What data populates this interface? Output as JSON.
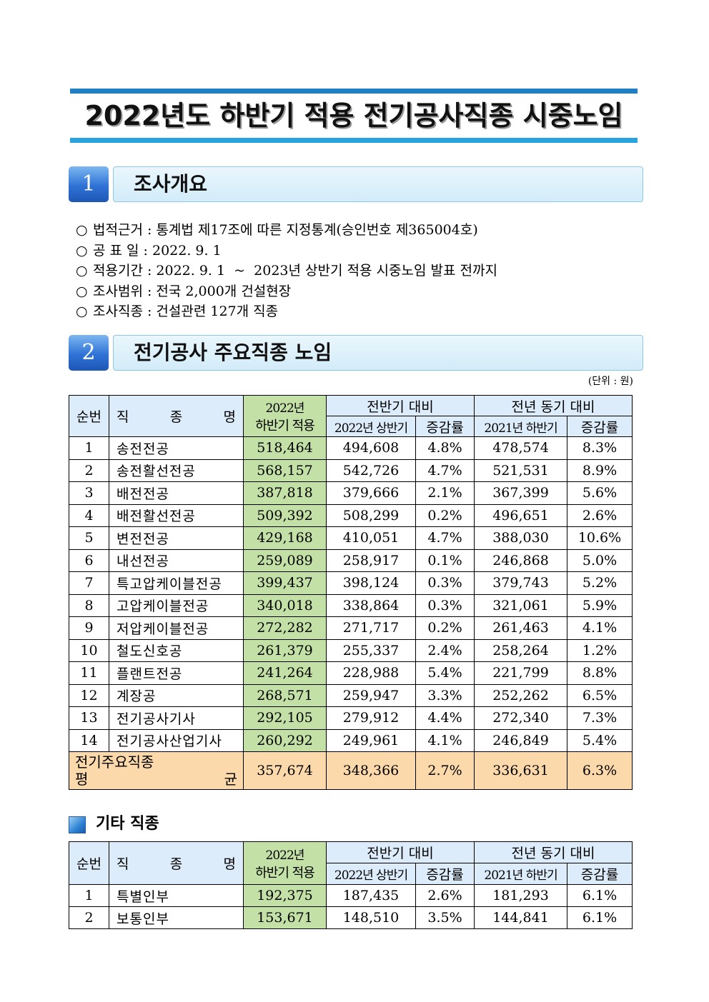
{
  "title": "2022년도 하반기 적용 전기공사직종 시중노임",
  "section1": {
    "number": "1",
    "title": "조사개요"
  },
  "overview": [
    {
      "bullet": "○",
      "text": "법적근거 : 통계법 제17조에 따른 지정통계(승인번호 제365004호)"
    },
    {
      "bullet": "○",
      "text": "공 표 일 : 2022. 9. 1"
    },
    {
      "bullet": "○",
      "text": "적용기간 : 2022. 9. 1  ~  2023년 상반기 적용 시중노임 발표 전까지"
    },
    {
      "bullet": "○",
      "text": "조사범위 : 전국 2,000개 건설현장"
    },
    {
      "bullet": "○",
      "text": "조사직종 : 건설관련 127개 직종"
    }
  ],
  "section2": {
    "number": "2",
    "title": "전기공사 주요직종 노임"
  },
  "unit": "(단위 : 원)",
  "table_headers": {
    "no": "순번",
    "name": [
      "직",
      "종",
      "명"
    ],
    "current_line1": "2022년",
    "current_line2": "하반기 적용",
    "prev_half": "전반기 대비",
    "prev_year": "전년 동기 대비",
    "h1_2022": "2022년 상반기",
    "rate1": "증감률",
    "h2_2021": "2021년 하반기",
    "rate2": "증감률"
  },
  "rows": [
    {
      "no": "1",
      "name": "송전전공",
      "cur": "518,464",
      "h1": "494,608",
      "r1": "4.8%",
      "h2": "478,574",
      "r2": "8.3%"
    },
    {
      "no": "2",
      "name": "송전활선전공",
      "cur": "568,157",
      "h1": "542,726",
      "r1": "4.7%",
      "h2": "521,531",
      "r2": "8.9%"
    },
    {
      "no": "3",
      "name": "배전전공",
      "cur": "387,818",
      "h1": "379,666",
      "r1": "2.1%",
      "h2": "367,399",
      "r2": "5.6%"
    },
    {
      "no": "4",
      "name": "배전활선전공",
      "cur": "509,392",
      "h1": "508,299",
      "r1": "0.2%",
      "h2": "496,651",
      "r2": "2.6%"
    },
    {
      "no": "5",
      "name": "변전전공",
      "cur": "429,168",
      "h1": "410,051",
      "r1": "4.7%",
      "h2": "388,030",
      "r2": "10.6%"
    },
    {
      "no": "6",
      "name": "내선전공",
      "cur": "259,089",
      "h1": "258,917",
      "r1": "0.1%",
      "h2": "246,868",
      "r2": "5.0%"
    },
    {
      "no": "7",
      "name": "특고압케이블전공",
      "cur": "399,437",
      "h1": "398,124",
      "r1": "0.3%",
      "h2": "379,743",
      "r2": "5.2%"
    },
    {
      "no": "8",
      "name": "고압케이블전공",
      "cur": "340,018",
      "h1": "338,864",
      "r1": "0.3%",
      "h2": "321,061",
      "r2": "5.9%"
    },
    {
      "no": "9",
      "name": "저압케이블전공",
      "cur": "272,282",
      "h1": "271,717",
      "r1": "0.2%",
      "h2": "261,463",
      "r2": "4.1%"
    },
    {
      "no": "10",
      "name": "철도신호공",
      "cur": "261,379",
      "h1": "255,337",
      "r1": "2.4%",
      "h2": "258,264",
      "r2": "1.2%"
    },
    {
      "no": "11",
      "name": "플랜트전공",
      "cur": "241,264",
      "h1": "228,988",
      "r1": "5.4%",
      "h2": "221,799",
      "r2": "8.8%"
    },
    {
      "no": "12",
      "name": "계장공",
      "cur": "268,571",
      "h1": "259,947",
      "r1": "3.3%",
      "h2": "252,262",
      "r2": "6.5%"
    },
    {
      "no": "13",
      "name": "전기공사기사",
      "cur": "292,105",
      "h1": "279,912",
      "r1": "4.4%",
      "h2": "272,340",
      "r2": "7.3%"
    },
    {
      "no": "14",
      "name": "전기공사산업기사",
      "cur": "260,292",
      "h1": "249,961",
      "r1": "4.1%",
      "h2": "246,849",
      "r2": "5.4%"
    }
  ],
  "average": {
    "label_line1": "전기주요직종",
    "label_line2_left": "평",
    "label_line2_right": "균",
    "cur": "357,674",
    "h1": "348,366",
    "r1": "2.7%",
    "h2": "336,631",
    "r2": "6.3%"
  },
  "other": {
    "title": "기타 직종",
    "rows": [
      {
        "no": "1",
        "name": "특별인부",
        "cur": "192,375",
        "h1": "187,435",
        "r1": "2.6%",
        "h2": "181,293",
        "r2": "6.1%"
      },
      {
        "no": "2",
        "name": "보통인부",
        "cur": "153,671",
        "h1": "148,510",
        "r1": "3.5%",
        "h2": "144,841",
        "r2": "6.1%"
      }
    ]
  },
  "colors": {
    "title_bar_top": "#1f7fc4",
    "title_bar_bottom": "#29a3dd",
    "header_bg": "#ddecfb",
    "current_column_bg": "#c3e0a6",
    "average_row_bg": "#fcd9ab"
  }
}
